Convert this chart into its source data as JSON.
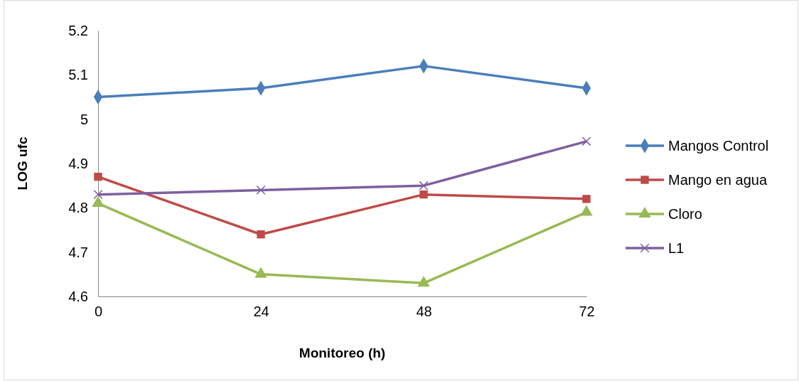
{
  "chart_data": {
    "type": "line",
    "xlabel": "Monitoreo (h)",
    "ylabel": "LOG ufc",
    "x": [
      0,
      24,
      48,
      72
    ],
    "xlim": [
      0,
      72
    ],
    "xticks": [
      0,
      24,
      48,
      72
    ],
    "ylim": [
      4.6,
      5.2
    ],
    "yticks": [
      4.6,
      4.7,
      4.8,
      4.9,
      5,
      5.1,
      5.2
    ],
    "grid": false,
    "legend": "right",
    "series": [
      {
        "name": "Mangos Control",
        "color": "#4a7ebb",
        "marker": "diamond",
        "values": [
          5.05,
          5.07,
          5.12,
          5.07
        ]
      },
      {
        "name": "Mango en agua",
        "color": "#be4b48",
        "marker": "square",
        "values": [
          4.87,
          4.74,
          4.83,
          4.82
        ]
      },
      {
        "name": "Cloro",
        "color": "#98b954",
        "marker": "triangle",
        "values": [
          4.81,
          4.65,
          4.63,
          4.79
        ]
      },
      {
        "name": "L1",
        "color": "#7d60a0",
        "marker": "cross",
        "values": [
          4.83,
          4.84,
          4.85,
          4.95
        ]
      }
    ]
  }
}
